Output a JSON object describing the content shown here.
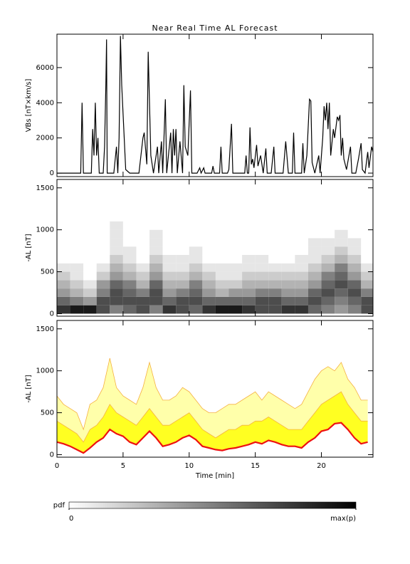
{
  "chart_data": [
    {
      "type": "line",
      "title": "Near Real Time AL Forecast",
      "ylabel": "VBs [nT×km/s]",
      "color": "#000000",
      "xlim": [
        0,
        23.9
      ],
      "xticks": [
        0,
        5,
        10,
        15,
        20
      ],
      "xtick_labels": false,
      "ylim": [
        -200,
        7900
      ],
      "yticks": [
        0,
        2000,
        4000,
        6000
      ],
      "x": [
        0,
        1.8,
        1.9,
        2.0,
        2.6,
        2.7,
        2.8,
        2.9,
        3.0,
        3.1,
        3.2,
        3.5,
        3.6,
        3.7,
        3.75,
        3.8,
        4.3,
        4.5,
        4.6,
        4.7,
        4.8,
        4.9,
        5.2,
        5.5,
        6.2,
        6.5,
        6.6,
        6.8,
        6.9,
        7.1,
        7.3,
        7.6,
        7.7,
        7.9,
        8.0,
        8.2,
        8.3,
        8.6,
        8.7,
        8.8,
        8.9,
        9.0,
        9.1,
        9.3,
        9.5,
        9.6,
        9.7,
        9.9,
        10.1,
        10.2,
        10.6,
        10.8,
        10.9,
        11.1,
        11.2,
        11.7,
        11.8,
        11.9,
        12.3,
        12.4,
        12.5,
        12.9,
        13.0,
        13.2,
        13.3,
        14.2,
        14.3,
        14.4,
        14.5,
        14.6,
        14.7,
        14.8,
        14.9,
        15.1,
        15.2,
        15.4,
        15.6,
        15.8,
        15.9,
        16.2,
        16.4,
        16.5,
        17.1,
        17.3,
        17.5,
        17.8,
        17.9,
        18.0,
        18.5,
        18.6,
        18.7,
        18.9,
        19.1,
        19.2,
        19.3,
        19.5,
        19.8,
        19.9,
        20.1,
        20.2,
        20.3,
        20.4,
        20.5,
        20.6,
        20.7,
        20.9,
        21.0,
        21.2,
        21.3,
        21.4,
        21.5,
        21.6,
        21.7,
        21.9,
        22.2,
        22.3,
        22.6,
        22.8,
        23.0,
        23.1,
        23.3,
        23.5,
        23.6,
        23.8,
        23.9
      ],
      "values": [
        0,
        0,
        4000,
        0,
        0,
        2500,
        1000,
        4000,
        1000,
        2000,
        0,
        0,
        1500,
        5000,
        7600,
        0,
        0,
        1500,
        0,
        2000,
        7800,
        5000,
        200,
        0,
        0,
        2000,
        2300,
        500,
        6900,
        1000,
        0,
        1500,
        0,
        1800,
        0,
        4200,
        0,
        2300,
        0,
        2500,
        1000,
        2500,
        0,
        1800,
        0,
        5000,
        1500,
        1000,
        4700,
        0,
        0,
        300,
        0,
        300,
        0,
        0,
        400,
        0,
        0,
        1500,
        0,
        0,
        200,
        2800,
        0,
        0,
        1000,
        0,
        0,
        2600,
        500,
        800,
        300,
        1600,
        400,
        1000,
        0,
        1400,
        0,
        0,
        1500,
        0,
        0,
        1800,
        0,
        0,
        2300,
        0,
        0,
        1700,
        0,
        1000,
        4200,
        4100,
        600,
        0,
        1000,
        0,
        2000,
        3800,
        3000,
        4000,
        2500,
        4000,
        1000,
        2500,
        2000,
        3200,
        3000,
        3300,
        1000,
        2000,
        800,
        200,
        1500,
        0,
        0,
        800,
        1700,
        200,
        0,
        1200,
        300,
        1500,
        1200
      ]
    },
    {
      "type": "heatmap",
      "ylabel": "-AL [nT]",
      "xlim": [
        0,
        23.9
      ],
      "xticks": [
        0,
        5,
        10,
        15,
        20
      ],
      "xtick_labels": false,
      "ylim": [
        -30,
        1600
      ],
      "yticks": [
        0,
        500,
        1000,
        1500
      ],
      "xbins": [
        0,
        1,
        2,
        3,
        4,
        5,
        6,
        7,
        8,
        9,
        10,
        11,
        12,
        13,
        14,
        15,
        16,
        17,
        18,
        19,
        20,
        21,
        22,
        23,
        24
      ],
      "ybins": [
        0,
        100,
        200,
        300,
        400,
        500,
        600,
        700,
        800,
        900,
        1000,
        1100,
        1200
      ],
      "zlim": [
        0,
        10
      ],
      "z": [
        [
          8,
          6,
          4,
          3,
          2,
          1,
          0,
          0,
          0,
          0,
          0,
          0
        ],
        [
          9,
          5,
          3,
          2,
          1,
          1,
          0,
          0,
          0,
          0,
          0,
          0
        ],
        [
          9,
          4,
          2,
          1,
          0,
          0,
          0,
          0,
          0,
          0,
          0,
          0
        ],
        [
          7,
          7,
          5,
          4,
          2,
          1,
          0,
          0,
          0,
          0,
          0,
          0
        ],
        [
          5,
          7,
          7,
          6,
          4,
          3,
          2,
          1,
          1,
          1,
          1,
          0
        ],
        [
          6,
          7,
          6,
          5,
          3,
          2,
          1,
          1,
          0,
          0,
          0,
          0
        ],
        [
          7,
          7,
          5,
          3,
          2,
          1,
          0,
          0,
          0,
          0,
          0,
          0
        ],
        [
          5,
          7,
          7,
          6,
          4,
          3,
          2,
          1,
          1,
          1,
          0,
          0
        ],
        [
          8,
          6,
          4,
          3,
          2,
          1,
          1,
          0,
          0,
          0,
          0,
          0
        ],
        [
          7,
          7,
          5,
          3,
          2,
          1,
          1,
          0,
          0,
          0,
          0,
          0
        ],
        [
          6,
          7,
          6,
          5,
          3,
          2,
          1,
          1,
          0,
          0,
          0,
          0
        ],
        [
          8,
          6,
          4,
          3,
          2,
          1,
          0,
          0,
          0,
          0,
          0,
          0
        ],
        [
          9,
          6,
          3,
          2,
          1,
          1,
          0,
          0,
          0,
          0,
          0,
          0
        ],
        [
          9,
          6,
          4,
          2,
          1,
          1,
          0,
          0,
          0,
          0,
          0,
          0
        ],
        [
          8,
          6,
          4,
          3,
          2,
          1,
          1,
          0,
          0,
          0,
          0,
          0
        ],
        [
          7,
          7,
          5,
          3,
          2,
          1,
          1,
          0,
          0,
          0,
          0,
          0
        ],
        [
          7,
          7,
          5,
          3,
          2,
          1,
          0,
          0,
          0,
          0,
          0,
          0
        ],
        [
          8,
          6,
          4,
          3,
          2,
          1,
          0,
          0,
          0,
          0,
          0,
          0
        ],
        [
          8,
          6,
          4,
          3,
          2,
          1,
          1,
          0,
          0,
          0,
          0,
          0
        ],
        [
          6,
          7,
          6,
          4,
          3,
          2,
          1,
          1,
          1,
          0,
          0,
          0
        ],
        [
          5,
          6,
          7,
          6,
          5,
          3,
          2,
          1,
          1,
          0,
          0,
          0
        ],
        [
          4,
          5,
          6,
          7,
          6,
          5,
          3,
          2,
          1,
          1,
          0,
          0
        ],
        [
          5,
          6,
          7,
          6,
          4,
          3,
          2,
          1,
          1,
          0,
          0,
          0
        ],
        [
          7,
          7,
          5,
          3,
          2,
          1,
          0,
          0,
          0,
          0,
          0,
          0
        ]
      ],
      "colorbar": {
        "label": "pdf",
        "ticks": [
          0,
          {
            "value": 10,
            "label": "max(p)"
          }
        ]
      }
    },
    {
      "type": "band",
      "ylabel": "-AL [nT]",
      "xlabel": "Time [min]",
      "xlim": [
        0,
        23.9
      ],
      "xticks": [
        0,
        5,
        10,
        15,
        20
      ],
      "xtick_labels": true,
      "ylim": [
        -30,
        1600
      ],
      "yticks": [
        0,
        500,
        1000,
        1500
      ],
      "x": [
        0,
        0.5,
        1,
        1.5,
        2,
        2.5,
        3,
        3.5,
        4,
        4.5,
        5,
        5.5,
        6,
        6.5,
        7,
        7.5,
        8,
        8.5,
        9,
        9.5,
        10,
        10.5,
        11,
        11.5,
        12,
        12.5,
        13,
        13.5,
        14,
        14.5,
        15,
        15.5,
        16,
        16.5,
        17,
        17.5,
        18,
        18.5,
        19,
        19.5,
        20,
        20.5,
        21,
        21.5,
        22,
        22.5,
        23,
        23.5
      ],
      "series": [
        {
          "color": "#ee1111",
          "values": [
            150,
            130,
            100,
            60,
            20,
            80,
            150,
            200,
            300,
            250,
            220,
            150,
            120,
            200,
            280,
            200,
            100,
            120,
            150,
            200,
            230,
            180,
            100,
            80,
            60,
            50,
            70,
            80,
            100,
            120,
            150,
            130,
            170,
            150,
            120,
            100,
            100,
            80,
            150,
            200,
            280,
            300,
            370,
            380,
            300,
            200,
            130,
            150
          ]
        },
        {
          "color": "#f5b041",
          "fill": "#ffff22",
          "values": [
            400,
            350,
            300,
            250,
            150,
            300,
            350,
            450,
            600,
            500,
            450,
            400,
            350,
            450,
            550,
            450,
            350,
            350,
            400,
            450,
            500,
            400,
            300,
            250,
            200,
            250,
            300,
            300,
            350,
            350,
            400,
            400,
            450,
            400,
            350,
            300,
            300,
            300,
            400,
            500,
            600,
            650,
            700,
            750,
            600,
            500,
            400,
            400
          ]
        },
        {
          "color": "#f5b041",
          "fill": "#ffffaa",
          "values": [
            700,
            600,
            550,
            500,
            300,
            600,
            650,
            800,
            1150,
            800,
            700,
            650,
            600,
            800,
            1100,
            800,
            650,
            650,
            700,
            800,
            750,
            650,
            550,
            500,
            500,
            550,
            600,
            600,
            650,
            700,
            750,
            650,
            750,
            700,
            650,
            600,
            550,
            600,
            750,
            900,
            1000,
            1050,
            1000,
            1100,
            900,
            800,
            650,
            650
          ]
        }
      ]
    }
  ]
}
